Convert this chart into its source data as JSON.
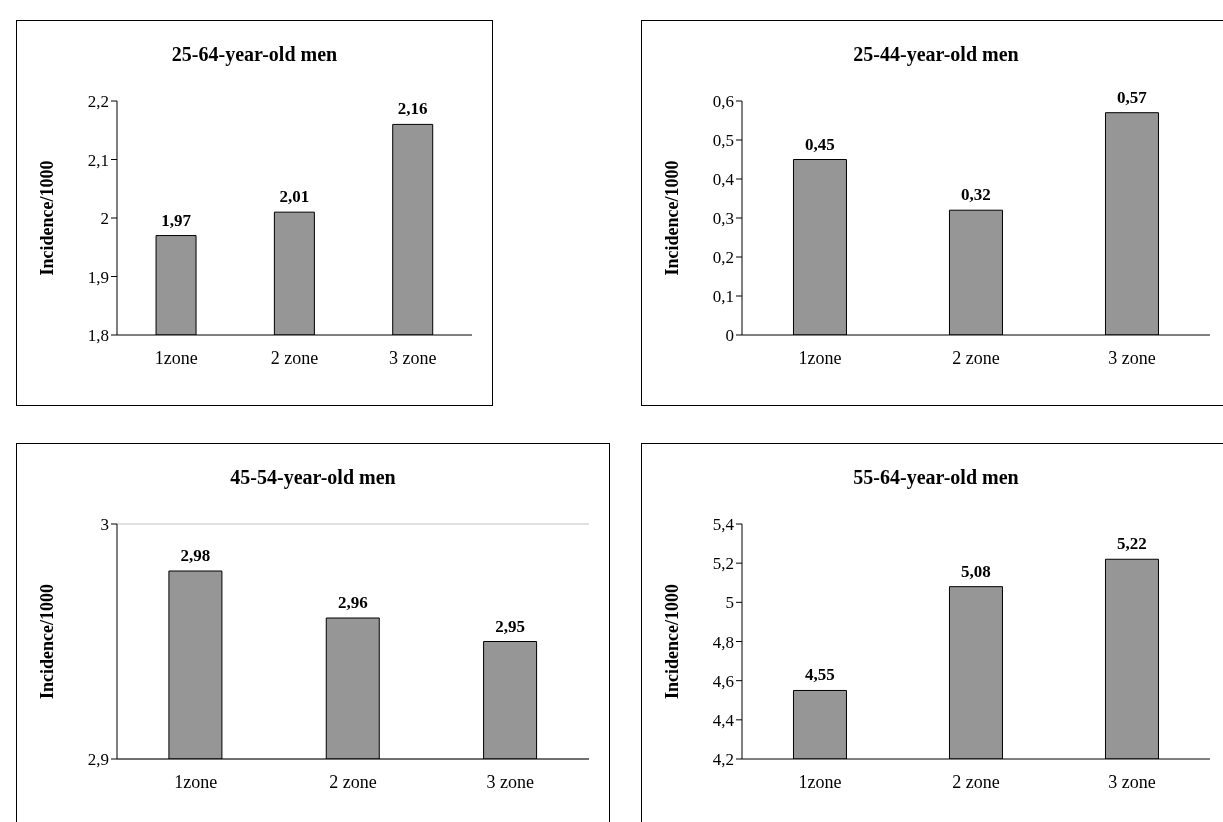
{
  "chart_data": [
    {
      "type": "bar",
      "title": "25-64-year-old men",
      "ylabel": "Incidence/1000",
      "categories": [
        "1zone",
        "2 zone",
        "3 zone"
      ],
      "values": [
        1.97,
        2.01,
        2.16
      ],
      "value_labels": [
        "1,97",
        "2,01",
        "2,16"
      ],
      "color": "#969696",
      "ylim": [
        1.8,
        2.2
      ],
      "yticks": [
        {
          "value": 1.8,
          "label": "1,8"
        },
        {
          "value": 1.9,
          "label": "1,9"
        },
        2,
        {
          "value": 2.1,
          "label": "2,1"
        },
        {
          "value": 2.2,
          "label": "2,2"
        }
      ],
      "grid": false,
      "legend": false
    },
    {
      "type": "bar",
      "title": "25-44-year-old men",
      "ylabel": "Incidence/1000",
      "categories": [
        "1zone",
        "2 zone",
        "3 zone"
      ],
      "values": [
        0.45,
        0.32,
        0.57
      ],
      "value_labels": [
        "0,45",
        "0,32",
        "0,57"
      ],
      "color": "#969696",
      "ylim": [
        0,
        0.6
      ],
      "yticks": [
        0,
        {
          "value": 0.1,
          "label": "0,1"
        },
        {
          "value": 0.2,
          "label": "0,2"
        },
        {
          "value": 0.3,
          "label": "0,3"
        },
        {
          "value": 0.4,
          "label": "0,4"
        },
        {
          "value": 0.5,
          "label": "0,5"
        },
        {
          "value": 0.6,
          "label": "0,6"
        }
      ],
      "grid": false,
      "legend": false
    },
    {
      "type": "bar",
      "title": "45-54-year-old men",
      "ylabel": "Incidence/1000",
      "categories": [
        "1zone",
        "2 zone",
        "3 zone"
      ],
      "values": [
        2.98,
        2.96,
        2.95
      ],
      "value_labels": [
        "2,98",
        "2,96",
        "2,95"
      ],
      "color": "#969696",
      "ylim": [
        2.9,
        3
      ],
      "yticks": [
        {
          "value": 2.9,
          "label": "2,9"
        },
        3
      ],
      "grid": "y",
      "legend": false
    },
    {
      "type": "bar",
      "title": "55-64-year-old men",
      "ylabel": "Incidence/1000",
      "categories": [
        "1zone",
        "2 zone",
        "3 zone"
      ],
      "values": [
        4.55,
        5.08,
        5.22
      ],
      "value_labels": [
        "4,55",
        "5,08",
        "5,22"
      ],
      "color": "#969696",
      "ylim": [
        4.2,
        5.4
      ],
      "yticks": [
        {
          "value": 4.2,
          "label": "4,2"
        },
        {
          "value": 4.4,
          "label": "4,4"
        },
        {
          "value": 4.6,
          "label": "4,6"
        },
        {
          "value": 4.8,
          "label": "4,8"
        },
        5,
        {
          "value": 5.2,
          "label": "5,2"
        },
        {
          "value": 5.4,
          "label": "5,4"
        }
      ],
      "grid": false,
      "legend": false
    }
  ]
}
